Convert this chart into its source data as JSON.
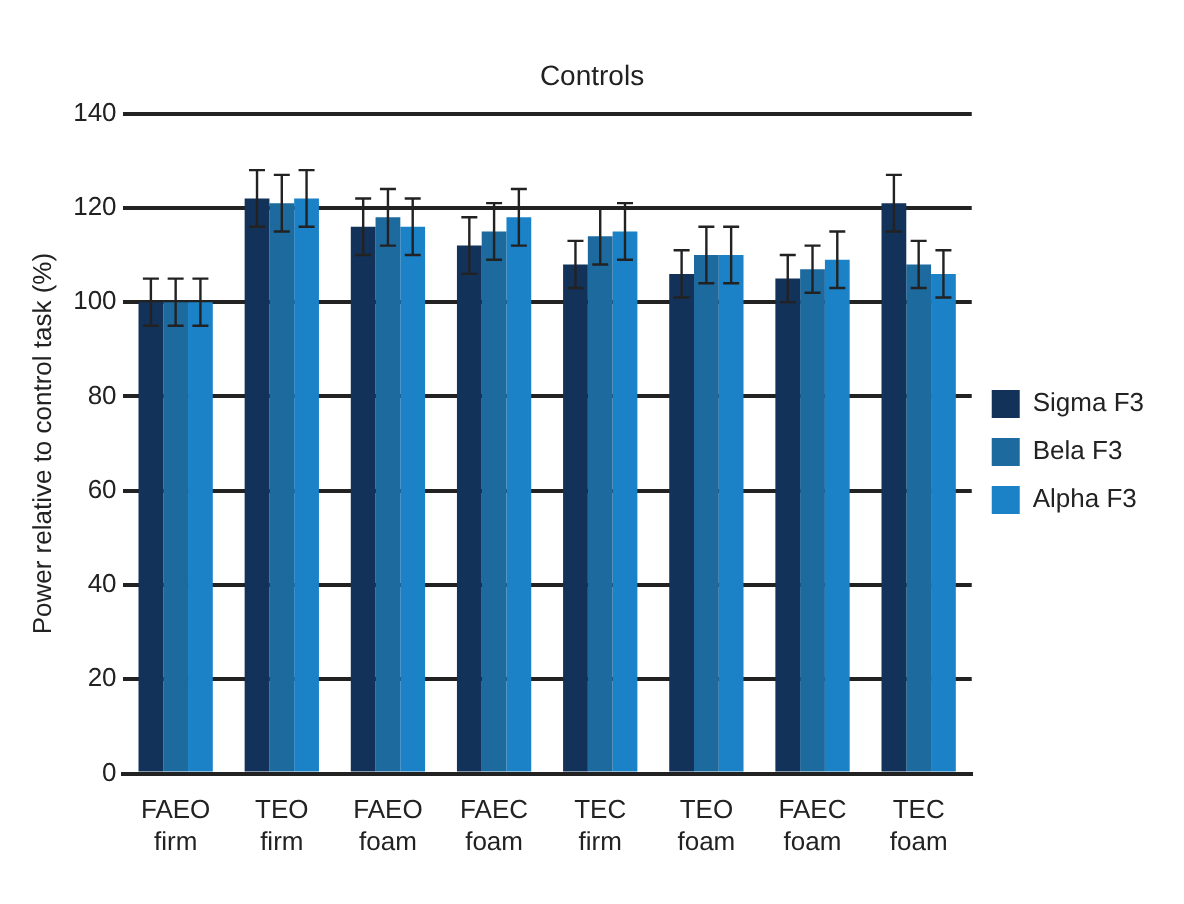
{
  "chart_data": {
    "type": "bar",
    "title": "Controls",
    "ylabel": "Power relative to control task (%)",
    "categories": [
      "FAEO firm",
      "TEO firm",
      "FAEO foam",
      "FAEC foam",
      "TEC firm",
      "TEO foam",
      "FAEC foam",
      "TEC foam"
    ],
    "series": [
      {
        "name": "Sigma F3",
        "color": "#12325a",
        "values": [
          100,
          122,
          116,
          112,
          108,
          106,
          105,
          121
        ],
        "errors": [
          5,
          6,
          6,
          6,
          5,
          5,
          5,
          6
        ]
      },
      {
        "name": "Bela F3",
        "color": "#1d6a9e",
        "values": [
          100,
          121,
          118,
          115,
          114,
          110,
          107,
          108
        ],
        "errors": [
          5,
          6,
          6,
          6,
          6,
          6,
          5,
          5
        ]
      },
      {
        "name": "Alpha F3",
        "color": "#1b82c8",
        "values": [
          100,
          122,
          116,
          118,
          115,
          110,
          109,
          106
        ],
        "errors": [
          5,
          6,
          6,
          6,
          6,
          6,
          6,
          5
        ]
      }
    ],
    "ylim": [
      0,
      140
    ],
    "yticks": [
      0,
      20,
      40,
      60,
      80,
      100,
      120,
      140
    ],
    "grid": "y",
    "legend": "right"
  }
}
